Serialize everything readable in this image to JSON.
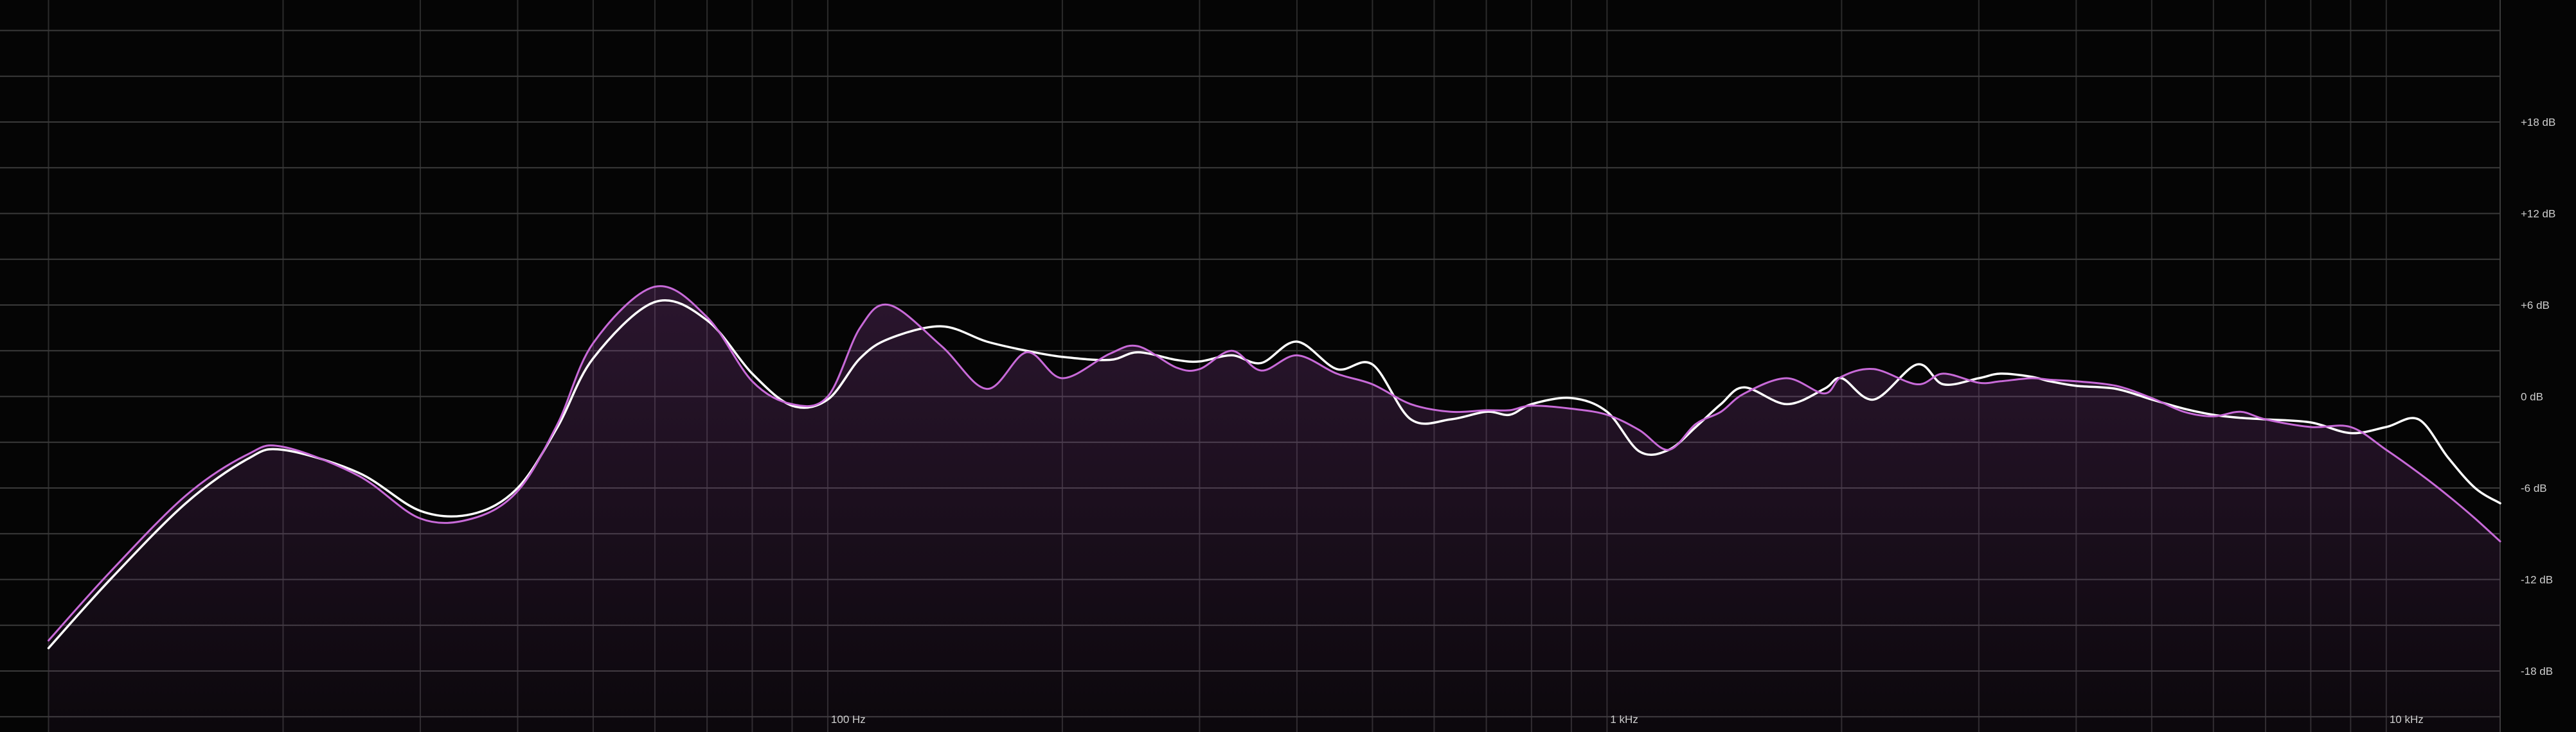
{
  "colors": {
    "background": "#050505",
    "grid": "#3a3a3a",
    "grid_minor": "#2b2b2b",
    "series_primary": "#ffffff",
    "series_secondary": "#c86ad8",
    "fill": "#b050c0"
  },
  "chart_data": {
    "type": "line",
    "xscale": "log",
    "xlim": [
      9,
      14000
    ],
    "ylim": [
      -22,
      26
    ],
    "y_ticks": [
      {
        "value": 18,
        "label": "+18 dB"
      },
      {
        "value": 12,
        "label": "+12 dB"
      },
      {
        "value": 6,
        "label": "+6 dB"
      },
      {
        "value": 0,
        "label": "0 dB"
      },
      {
        "value": -6,
        "label": "-6 dB"
      },
      {
        "value": -12,
        "label": "-12 dB"
      },
      {
        "value": -18,
        "label": "-18 dB"
      }
    ],
    "x_ticks": [
      {
        "value": 100,
        "label": "100 Hz"
      },
      {
        "value": 1000,
        "label": "1 kHz"
      },
      {
        "value": 10000,
        "label": "10 kHz"
      }
    ],
    "grid": true,
    "series": [
      {
        "x": [
          10,
          12,
          15,
          18,
          20,
          25,
          30,
          35,
          40,
          45,
          50,
          60,
          70,
          80,
          90,
          100,
          110,
          120,
          140,
          160,
          180,
          200,
          230,
          250,
          280,
          300,
          330,
          360,
          400,
          450,
          500,
          560,
          630,
          700,
          750,
          800,
          900,
          1000,
          1100,
          1200,
          1300,
          1400,
          1500,
          1700,
          1900,
          2000,
          2200,
          2500,
          2700,
          3000,
          3200,
          3500,
          3700,
          4000,
          4500,
          5000,
          5500,
          6000,
          6500,
          7000,
          8000,
          9000,
          10000,
          11000,
          12000,
          13000,
          14000
        ],
        "y": [
          -16.5,
          -12,
          -7,
          -4.1,
          -3.5,
          -5,
          -7.5,
          -7.7,
          -6,
          -2,
          2.5,
          6.2,
          5,
          1.5,
          -0.6,
          -0.2,
          2.5,
          3.8,
          4.6,
          3.6,
          3,
          2.6,
          2.4,
          2.9,
          2.4,
          2.3,
          2.7,
          2.2,
          3.6,
          1.8,
          2.1,
          -1.5,
          -1.5,
          -1.0,
          -1.2,
          -0.5,
          -0.1,
          -1.0,
          -3.6,
          -3.5,
          -2.0,
          -0.5,
          0.6,
          -0.5,
          0.5,
          1.2,
          -0.2,
          2.1,
          0.8,
          1.2,
          1.5,
          1.3,
          1.0,
          0.7,
          0.5,
          -0.2,
          -0.8,
          -1.2,
          -1.4,
          -1.5,
          -1.7,
          -2.4,
          -2.0,
          -1.5,
          -4.0,
          -6.0,
          -7.0
        ]
      },
      {
        "x": [
          10,
          12,
          15,
          18,
          20,
          25,
          30,
          35,
          40,
          45,
          50,
          60,
          70,
          80,
          90,
          100,
          110,
          120,
          140,
          160,
          180,
          200,
          230,
          250,
          280,
          300,
          330,
          360,
          400,
          450,
          500,
          560,
          630,
          700,
          750,
          800,
          900,
          1000,
          1100,
          1200,
          1300,
          1400,
          1500,
          1700,
          1900,
          2000,
          2200,
          2500,
          2700,
          3000,
          3200,
          3500,
          3700,
          4000,
          4500,
          5000,
          5500,
          6000,
          6500,
          7000,
          8000,
          9000,
          10000,
          11000,
          12000,
          13000,
          14000
        ],
        "y": [
          -16,
          -11.5,
          -6.5,
          -3.8,
          -3.3,
          -5.2,
          -8.0,
          -8.0,
          -6.2,
          -1.8,
          3.5,
          7.2,
          5.2,
          1.0,
          -0.5,
          0.0,
          4.5,
          6.0,
          3.3,
          0.5,
          2.9,
          1.2,
          2.8,
          3.3,
          1.9,
          1.8,
          3.0,
          1.7,
          2.7,
          1.5,
          0.8,
          -0.5,
          -1.0,
          -0.9,
          -0.9,
          -0.6,
          -0.8,
          -1.2,
          -2.2,
          -3.5,
          -1.8,
          -1.0,
          0.2,
          1.2,
          0.2,
          1.3,
          1.8,
          0.8,
          1.5,
          0.9,
          1.0,
          1.2,
          1.1,
          1.0,
          0.7,
          -0.1,
          -1.0,
          -1.3,
          -1.0,
          -1.5,
          -2.0,
          -2.0,
          -3.5,
          -5.0,
          -6.5,
          -8.0,
          -9.5
        ]
      }
    ]
  }
}
